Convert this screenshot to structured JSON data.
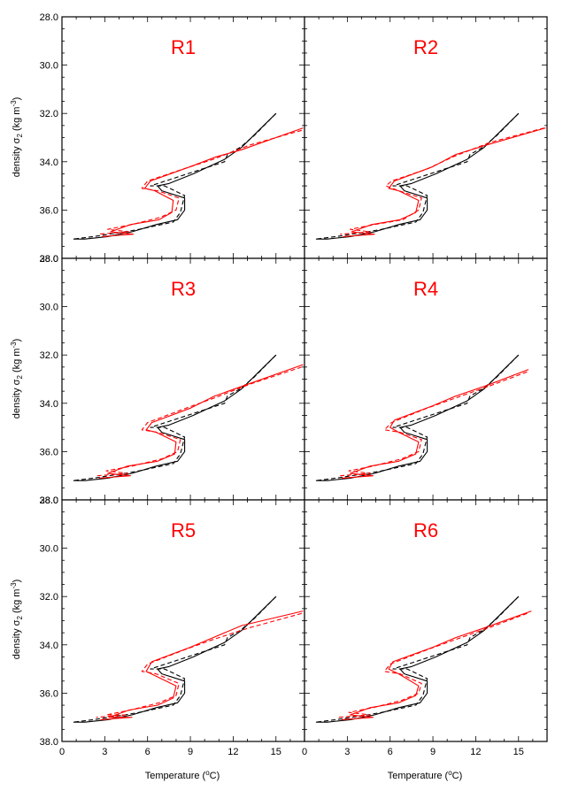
{
  "figure": {
    "ylabel_main": "density σ",
    "ylabel_sub": "2",
    "ylabel_unit": "(kg m",
    "ylabel_sup": "-3",
    "ylabel_end": ")",
    "xlabel_main": "Temperature (",
    "xlabel_sup": "o",
    "xlabel_end": "C)"
  },
  "colors": {
    "observation": "#000000",
    "model": "#ff0000",
    "panel_title": "#ff0000"
  },
  "chart_data": {
    "type": "line",
    "xlim": [
      0,
      17
    ],
    "ylim": [
      28,
      38
    ],
    "y_reversed": true,
    "xticks": [
      0,
      3,
      6,
      9,
      12,
      15
    ],
    "xtick_labels": [
      "0",
      "3",
      "6",
      "9",
      "12",
      "15"
    ],
    "yticks": [
      28,
      30,
      32,
      34,
      36,
      38
    ],
    "ytick_labels": [
      "28.0",
      "30.0",
      "32.0",
      "34.0",
      "36.0",
      "38.0"
    ],
    "grid": false,
    "obs_solid": [
      [
        15.0,
        32.0
      ],
      [
        13.8,
        32.7
      ],
      [
        12.6,
        33.4
      ],
      [
        11.4,
        33.9
      ],
      [
        10.3,
        34.2
      ],
      [
        9.2,
        34.5
      ],
      [
        7.5,
        34.9
      ],
      [
        6.7,
        35.0
      ],
      [
        7.0,
        35.2
      ],
      [
        8.6,
        35.5
      ],
      [
        8.6,
        36.0
      ],
      [
        8.1,
        36.4
      ],
      [
        6.6,
        36.6
      ],
      [
        4.9,
        36.9
      ],
      [
        3.2,
        37.1
      ],
      [
        1.6,
        37.2
      ],
      [
        0.8,
        37.2
      ]
    ],
    "obs_dashed": [
      [
        15.0,
        32.0
      ],
      [
        13.5,
        32.9
      ],
      [
        12.5,
        33.4
      ],
      [
        11.6,
        33.7
      ],
      [
        11.4,
        34.0
      ],
      [
        6.2,
        35.0
      ],
      [
        7.2,
        35.0
      ],
      [
        8.6,
        35.4
      ],
      [
        8.3,
        36.1
      ],
      [
        7.8,
        36.5
      ],
      [
        5.4,
        36.8
      ],
      [
        4.4,
        36.9
      ],
      [
        2.2,
        37.1
      ],
      [
        0.8,
        37.2
      ]
    ],
    "panels": [
      {
        "title": "R1",
        "model_solid": [
          [
            16.9,
            32.6
          ],
          [
            12.6,
            33.5
          ],
          [
            10.8,
            33.8
          ],
          [
            9.0,
            34.2
          ],
          [
            6.2,
            34.8
          ],
          [
            5.8,
            35.1
          ],
          [
            6.5,
            35.2
          ],
          [
            7.8,
            35.6
          ],
          [
            7.7,
            36.1
          ],
          [
            6.8,
            36.4
          ],
          [
            4.8,
            36.6
          ],
          [
            3.4,
            36.9
          ],
          [
            5.0,
            37.0
          ],
          [
            2.8,
            37.1
          ]
        ],
        "model_dashed": [
          [
            16.8,
            32.7
          ],
          [
            13.2,
            33.3
          ],
          [
            10.6,
            33.9
          ],
          [
            8.5,
            34.3
          ],
          [
            6.0,
            34.8
          ],
          [
            5.6,
            35.1
          ],
          [
            6.7,
            35.2
          ],
          [
            8.2,
            35.5
          ],
          [
            8.0,
            36.0
          ],
          [
            6.9,
            36.3
          ],
          [
            4.9,
            36.6
          ],
          [
            3.2,
            36.8
          ],
          [
            4.7,
            36.9
          ],
          [
            2.5,
            37.0
          ]
        ]
      },
      {
        "title": "R2",
        "model_solid": [
          [
            16.9,
            32.6
          ],
          [
            12.8,
            33.3
          ],
          [
            10.6,
            33.7
          ],
          [
            9.0,
            34.2
          ],
          [
            6.3,
            34.8
          ],
          [
            5.9,
            35.1
          ],
          [
            6.6,
            35.2
          ],
          [
            8.0,
            35.6
          ],
          [
            7.8,
            36.1
          ],
          [
            6.7,
            36.4
          ],
          [
            4.7,
            36.6
          ],
          [
            3.3,
            36.9
          ],
          [
            4.9,
            37.0
          ],
          [
            2.7,
            37.1
          ]
        ],
        "model_dashed": [
          [
            16.8,
            32.6
          ],
          [
            13.0,
            33.2
          ],
          [
            10.4,
            33.8
          ],
          [
            8.6,
            34.3
          ],
          [
            6.1,
            34.8
          ],
          [
            5.7,
            35.0
          ],
          [
            6.6,
            35.2
          ],
          [
            8.2,
            35.5
          ],
          [
            8.0,
            36.0
          ],
          [
            6.9,
            36.4
          ],
          [
            4.9,
            36.6
          ],
          [
            3.2,
            36.8
          ],
          [
            4.6,
            36.9
          ],
          [
            2.5,
            37.0
          ]
        ]
      },
      {
        "title": "R3",
        "model_solid": [
          [
            16.9,
            32.4
          ],
          [
            12.6,
            33.3
          ],
          [
            10.7,
            33.7
          ],
          [
            9.0,
            34.2
          ],
          [
            6.3,
            34.8
          ],
          [
            5.9,
            35.1
          ],
          [
            6.6,
            35.2
          ],
          [
            8.0,
            35.6
          ],
          [
            7.9,
            36.1
          ],
          [
            6.7,
            36.4
          ],
          [
            4.6,
            36.6
          ],
          [
            3.2,
            36.9
          ],
          [
            4.8,
            37.0
          ],
          [
            2.6,
            37.1
          ]
        ],
        "model_dashed": [
          [
            16.8,
            32.5
          ],
          [
            13.2,
            33.2
          ],
          [
            10.6,
            33.8
          ],
          [
            8.7,
            34.2
          ],
          [
            6.0,
            34.8
          ],
          [
            5.6,
            35.1
          ],
          [
            6.7,
            35.2
          ],
          [
            8.3,
            35.5
          ],
          [
            8.1,
            36.0
          ],
          [
            7.0,
            36.3
          ],
          [
            4.9,
            36.6
          ],
          [
            3.1,
            36.8
          ],
          [
            4.6,
            36.9
          ],
          [
            2.4,
            37.0
          ]
        ]
      },
      {
        "title": "R4",
        "model_solid": [
          [
            15.7,
            32.6
          ],
          [
            12.6,
            33.3
          ],
          [
            10.6,
            33.7
          ],
          [
            9.0,
            34.1
          ],
          [
            6.3,
            34.7
          ],
          [
            6.0,
            35.0
          ],
          [
            6.6,
            35.2
          ],
          [
            8.0,
            35.6
          ],
          [
            7.8,
            36.1
          ],
          [
            6.6,
            36.4
          ],
          [
            4.6,
            36.6
          ],
          [
            3.2,
            36.9
          ],
          [
            4.8,
            37.0
          ],
          [
            2.6,
            37.1
          ]
        ],
        "model_dashed": [
          [
            15.6,
            32.7
          ],
          [
            12.9,
            33.3
          ],
          [
            10.5,
            33.8
          ],
          [
            8.6,
            34.2
          ],
          [
            6.1,
            34.8
          ],
          [
            5.6,
            35.1
          ],
          [
            6.7,
            35.2
          ],
          [
            8.2,
            35.5
          ],
          [
            8.0,
            36.0
          ],
          [
            6.8,
            36.3
          ],
          [
            4.8,
            36.6
          ],
          [
            3.1,
            36.8
          ],
          [
            4.6,
            36.9
          ],
          [
            2.5,
            37.0
          ]
        ]
      },
      {
        "title": "R5",
        "model_solid": [
          [
            16.9,
            32.6
          ],
          [
            12.6,
            33.2
          ],
          [
            10.6,
            33.7
          ],
          [
            9.0,
            34.1
          ],
          [
            6.3,
            34.7
          ],
          [
            5.9,
            35.1
          ],
          [
            6.6,
            35.3
          ],
          [
            8.0,
            35.7
          ],
          [
            7.8,
            36.2
          ],
          [
            6.7,
            36.5
          ],
          [
            4.7,
            36.7
          ],
          [
            3.3,
            37.0
          ],
          [
            4.9,
            37.0
          ],
          [
            2.7,
            37.1
          ]
        ],
        "model_dashed": [
          [
            16.8,
            32.7
          ],
          [
            13.1,
            33.3
          ],
          [
            10.5,
            33.8
          ],
          [
            8.6,
            34.2
          ],
          [
            6.0,
            34.8
          ],
          [
            5.6,
            35.1
          ],
          [
            6.6,
            35.2
          ],
          [
            8.2,
            35.6
          ],
          [
            8.0,
            36.1
          ],
          [
            6.8,
            36.4
          ],
          [
            4.8,
            36.7
          ],
          [
            3.1,
            36.9
          ],
          [
            4.6,
            36.9
          ],
          [
            2.4,
            37.0
          ]
        ]
      },
      {
        "title": "R6",
        "model_solid": [
          [
            15.9,
            32.6
          ],
          [
            12.6,
            33.3
          ],
          [
            10.6,
            33.7
          ],
          [
            9.0,
            34.1
          ],
          [
            6.2,
            34.7
          ],
          [
            5.9,
            35.0
          ],
          [
            6.6,
            35.2
          ],
          [
            8.0,
            35.7
          ],
          [
            7.8,
            36.1
          ],
          [
            6.6,
            36.4
          ],
          [
            4.6,
            36.6
          ],
          [
            3.2,
            36.9
          ],
          [
            4.8,
            37.0
          ],
          [
            2.6,
            37.1
          ]
        ],
        "model_dashed": [
          [
            15.6,
            32.7
          ],
          [
            12.9,
            33.3
          ],
          [
            10.5,
            33.8
          ],
          [
            8.6,
            34.2
          ],
          [
            6.0,
            34.8
          ],
          [
            5.6,
            35.1
          ],
          [
            6.7,
            35.2
          ],
          [
            8.2,
            35.6
          ],
          [
            8.0,
            36.0
          ],
          [
            6.8,
            36.3
          ],
          [
            4.8,
            36.6
          ],
          [
            3.1,
            36.8
          ],
          [
            4.6,
            36.9
          ],
          [
            2.4,
            37.0
          ]
        ]
      }
    ]
  }
}
